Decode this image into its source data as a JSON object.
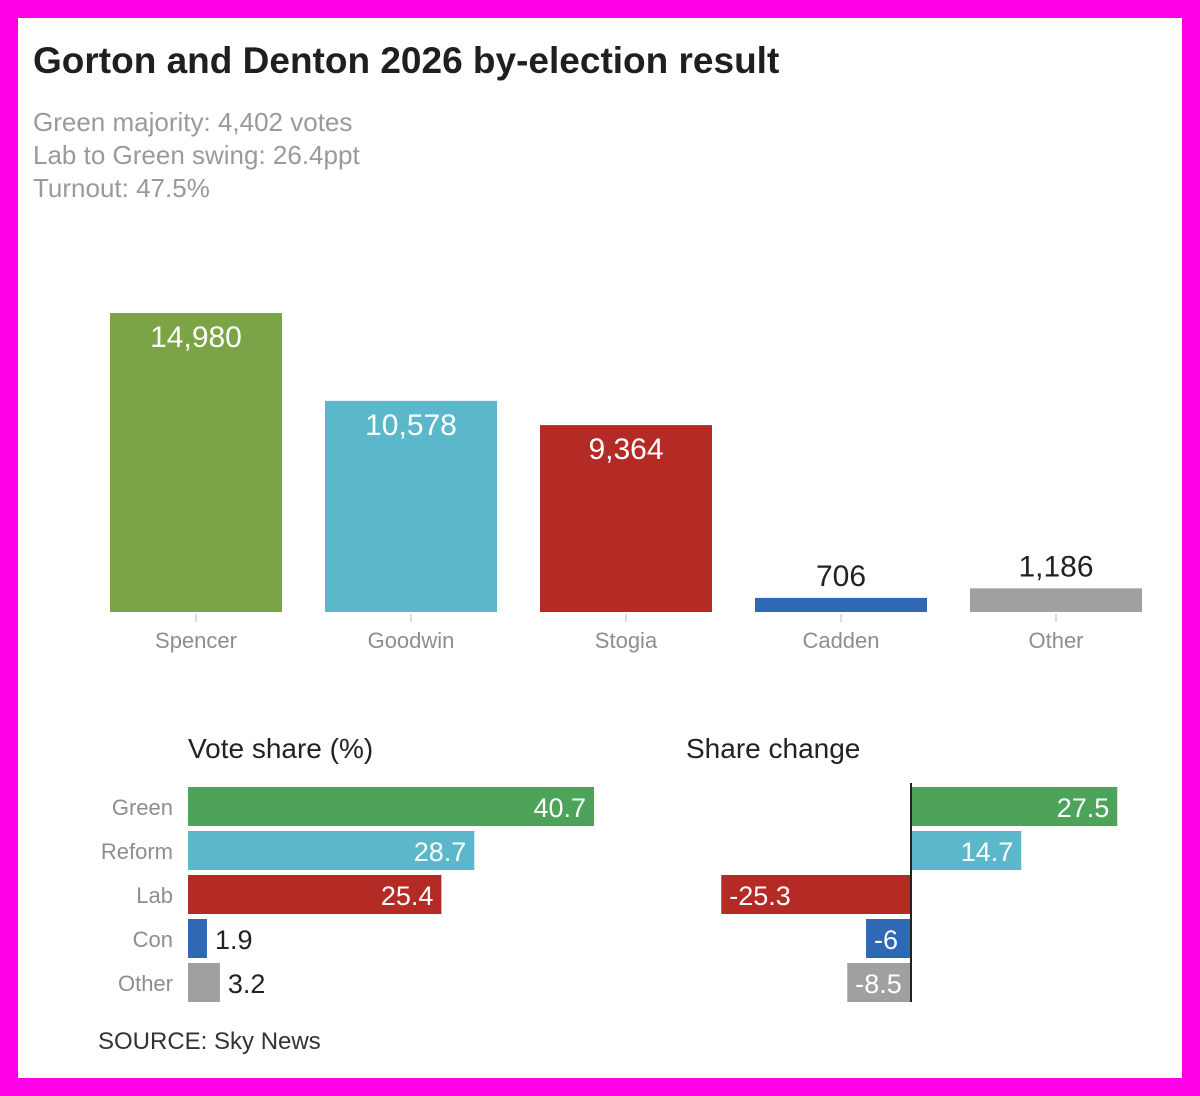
{
  "header": {
    "title": "Gorton and Denton 2026 by-election result",
    "majority": "Green majority: 4,402 votes",
    "swing": "Lab to Green swing: 26.4ppt",
    "turnout": "Turnout: 47.5%"
  },
  "colors": {
    "green": "#7aa445",
    "teal": "#5bb8cb",
    "red": "#b42a24",
    "blue": "#2f69b5",
    "grey": "#a0a0a0",
    "share_green": "#4ea35b"
  },
  "chart_data": [
    {
      "type": "bar",
      "title": "",
      "categories": [
        "Spencer",
        "Goodwin",
        "Stogia",
        "Cadden",
        "Other"
      ],
      "values": [
        14980,
        10578,
        9364,
        706,
        1186
      ],
      "labels": [
        "14,980",
        "10,578",
        "9,364",
        "706",
        "1,186"
      ],
      "colors": [
        "#7aa445",
        "#5bb8cb",
        "#b42a24",
        "#2f69b5",
        "#a0a0a0"
      ],
      "xlabel": "",
      "ylabel": "",
      "ylim": [
        0,
        14980
      ]
    },
    {
      "type": "bar",
      "orientation": "horizontal",
      "title": "Vote share (%)",
      "categories": [
        "Green",
        "Reform",
        "Lab",
        "Con",
        "Other"
      ],
      "values": [
        40.7,
        28.7,
        25.4,
        1.9,
        3.2
      ],
      "labels": [
        "40.7",
        "28.7",
        "25.4",
        "1.9",
        "3.2"
      ],
      "colors": [
        "#4ea35b",
        "#5bb8cb",
        "#b42a24",
        "#2f69b5",
        "#a0a0a0"
      ],
      "xlim": [
        0,
        40.7
      ]
    },
    {
      "type": "bar",
      "orientation": "horizontal",
      "title": "Share change",
      "categories": [
        "Green",
        "Reform",
        "Lab",
        "Con",
        "Other"
      ],
      "values": [
        27.5,
        14.7,
        -25.3,
        -6,
        -8.5
      ],
      "labels": [
        "27.5",
        "14.7",
        "-25.3",
        "-6",
        "-8.5"
      ],
      "colors": [
        "#4ea35b",
        "#5bb8cb",
        "#b42a24",
        "#2f69b5",
        "#a0a0a0"
      ],
      "xlim": [
        -25.3,
        27.5
      ]
    }
  ],
  "footer": {
    "source": "SOURCE: Sky News"
  }
}
